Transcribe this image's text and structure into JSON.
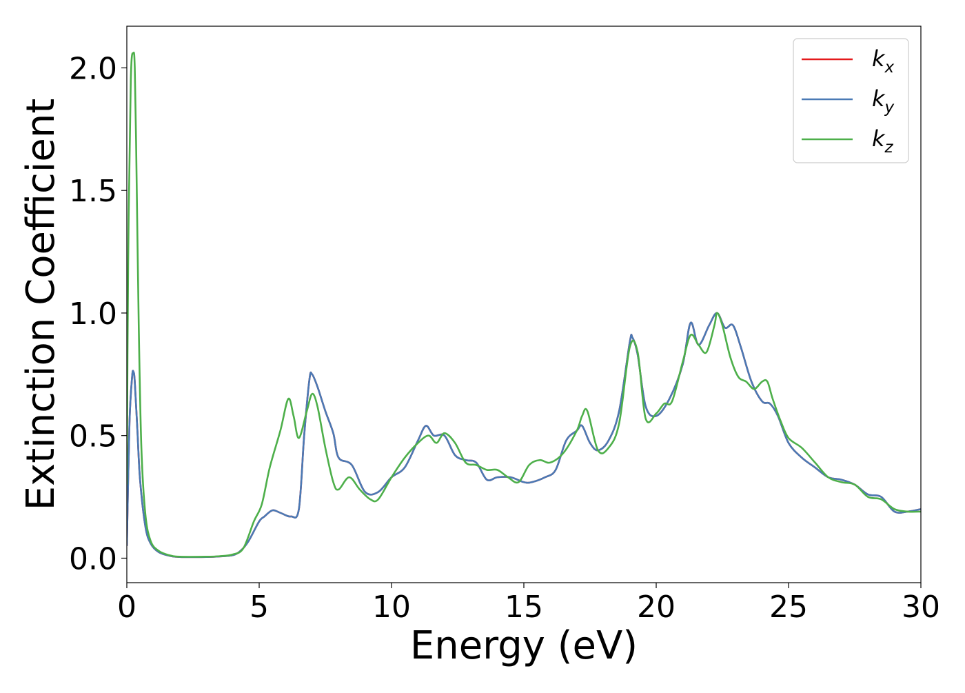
{
  "chart_data": {
    "type": "line",
    "title": "",
    "xlabel": "Energy (eV)",
    "ylabel": "Extinction Coefficient",
    "xlim": [
      0,
      30
    ],
    "ylim": [
      -0.1,
      2.17
    ],
    "xticks": [
      0,
      5,
      10,
      15,
      20,
      25,
      30
    ],
    "xtick_labels": [
      "0",
      "5",
      "10",
      "15",
      "20",
      "25",
      "30"
    ],
    "yticks": [
      0.0,
      0.5,
      1.0,
      1.5,
      2.0
    ],
    "ytick_labels": [
      "0.0",
      "0.5",
      "1.0",
      "1.5",
      "2.0"
    ],
    "grid": false,
    "legend_position": "top-right",
    "series": [
      {
        "name": "kx",
        "label_base": "k",
        "label_sub": "x",
        "color": "#e41a1c",
        "x": [
          0.0,
          0.1,
          0.2,
          0.25,
          0.3,
          0.4,
          0.5,
          0.7,
          0.9,
          1.2,
          1.6,
          2.0,
          3.0,
          3.5,
          4.0,
          4.3,
          4.6,
          5.0,
          5.2,
          5.5,
          5.8,
          6.2,
          6.5,
          6.7,
          6.9,
          7.0,
          7.2,
          7.5,
          7.8,
          8.0,
          8.5,
          9.0,
          9.5,
          10.0,
          10.5,
          11.0,
          11.3,
          11.6,
          12.0,
          12.4,
          12.8,
          13.2,
          13.6,
          14.0,
          14.5,
          15.0,
          15.3,
          15.8,
          16.2,
          16.6,
          17.0,
          17.2,
          17.5,
          17.8,
          18.2,
          18.6,
          19.0,
          19.1,
          19.3,
          19.6,
          20.0,
          20.5,
          21.0,
          21.3,
          21.6,
          22.0,
          22.3,
          22.6,
          22.9,
          23.2,
          23.6,
          24.0,
          24.3,
          24.6,
          25.0,
          25.5,
          26.0,
          26.5,
          27.0,
          27.5,
          28.0,
          28.5,
          29.0,
          29.5,
          30.0
        ],
        "y": [
          0.05,
          0.55,
          0.74,
          0.76,
          0.72,
          0.52,
          0.32,
          0.13,
          0.06,
          0.025,
          0.01,
          0.005,
          0.005,
          0.007,
          0.012,
          0.03,
          0.07,
          0.15,
          0.17,
          0.195,
          0.185,
          0.17,
          0.2,
          0.5,
          0.73,
          0.75,
          0.7,
          0.6,
          0.51,
          0.41,
          0.38,
          0.27,
          0.27,
          0.33,
          0.37,
          0.48,
          0.54,
          0.5,
          0.5,
          0.42,
          0.4,
          0.39,
          0.32,
          0.33,
          0.33,
          0.31,
          0.31,
          0.33,
          0.36,
          0.48,
          0.52,
          0.54,
          0.47,
          0.44,
          0.48,
          0.6,
          0.88,
          0.9,
          0.83,
          0.62,
          0.58,
          0.65,
          0.79,
          0.96,
          0.87,
          0.95,
          1.0,
          0.94,
          0.95,
          0.86,
          0.72,
          0.64,
          0.63,
          0.58,
          0.47,
          0.41,
          0.37,
          0.33,
          0.32,
          0.3,
          0.26,
          0.25,
          0.19,
          0.19,
          0.2
        ]
      },
      {
        "name": "ky",
        "label_base": "k",
        "label_sub": "y",
        "color": "#4a7ab5",
        "x": [
          0.0,
          0.1,
          0.2,
          0.25,
          0.3,
          0.4,
          0.5,
          0.7,
          0.9,
          1.2,
          1.6,
          2.0,
          3.0,
          3.5,
          4.0,
          4.3,
          4.6,
          5.0,
          5.2,
          5.5,
          5.8,
          6.2,
          6.5,
          6.7,
          6.9,
          7.0,
          7.2,
          7.5,
          7.8,
          8.0,
          8.5,
          9.0,
          9.5,
          10.0,
          10.5,
          11.0,
          11.3,
          11.6,
          12.0,
          12.4,
          12.8,
          13.2,
          13.6,
          14.0,
          14.5,
          15.0,
          15.3,
          15.8,
          16.2,
          16.6,
          17.0,
          17.2,
          17.5,
          17.8,
          18.2,
          18.6,
          19.0,
          19.1,
          19.3,
          19.6,
          20.0,
          20.5,
          21.0,
          21.3,
          21.6,
          22.0,
          22.3,
          22.6,
          22.9,
          23.2,
          23.6,
          24.0,
          24.3,
          24.6,
          25.0,
          25.5,
          26.0,
          26.5,
          27.0,
          27.5,
          28.0,
          28.5,
          29.0,
          29.5,
          30.0
        ],
        "y": [
          0.05,
          0.55,
          0.74,
          0.76,
          0.72,
          0.52,
          0.32,
          0.13,
          0.06,
          0.025,
          0.01,
          0.005,
          0.005,
          0.007,
          0.012,
          0.03,
          0.07,
          0.15,
          0.17,
          0.195,
          0.185,
          0.17,
          0.2,
          0.5,
          0.73,
          0.75,
          0.7,
          0.6,
          0.51,
          0.41,
          0.38,
          0.27,
          0.27,
          0.33,
          0.37,
          0.48,
          0.54,
          0.5,
          0.5,
          0.42,
          0.4,
          0.39,
          0.32,
          0.33,
          0.33,
          0.31,
          0.31,
          0.33,
          0.36,
          0.48,
          0.52,
          0.54,
          0.47,
          0.44,
          0.48,
          0.6,
          0.88,
          0.9,
          0.83,
          0.62,
          0.58,
          0.65,
          0.79,
          0.96,
          0.87,
          0.95,
          1.0,
          0.94,
          0.95,
          0.86,
          0.72,
          0.64,
          0.63,
          0.58,
          0.47,
          0.41,
          0.37,
          0.33,
          0.32,
          0.3,
          0.26,
          0.25,
          0.19,
          0.19,
          0.2
        ]
      },
      {
        "name": "kz",
        "label_base": "k",
        "label_sub": "z",
        "color": "#4daf4a",
        "x": [
          0.0,
          0.05,
          0.15,
          0.25,
          0.3,
          0.35,
          0.45,
          0.55,
          0.7,
          0.9,
          1.2,
          1.6,
          2.0,
          3.0,
          3.5,
          4.0,
          4.4,
          4.8,
          5.1,
          5.4,
          5.8,
          6.1,
          6.3,
          6.5,
          6.8,
          7.0,
          7.2,
          7.5,
          7.8,
          8.0,
          8.4,
          8.8,
          9.2,
          9.5,
          10.0,
          10.5,
          11.0,
          11.4,
          11.7,
          12.0,
          12.4,
          12.8,
          13.2,
          13.6,
          14.0,
          14.4,
          14.8,
          15.2,
          15.6,
          16.0,
          16.5,
          17.0,
          17.2,
          17.4,
          17.8,
          18.2,
          18.6,
          19.0,
          19.3,
          19.6,
          20.0,
          20.3,
          20.6,
          21.0,
          21.3,
          21.6,
          21.9,
          22.2,
          22.3,
          22.5,
          22.8,
          23.1,
          23.4,
          23.7,
          24.0,
          24.2,
          24.4,
          24.7,
          25.0,
          25.5,
          26.0,
          26.5,
          27.0,
          27.5,
          28.0,
          28.5,
          29.0,
          29.5,
          30.0
        ],
        "y": [
          0.3,
          1.2,
          1.95,
          2.06,
          2.0,
          1.7,
          0.95,
          0.45,
          0.18,
          0.07,
          0.03,
          0.012,
          0.006,
          0.006,
          0.008,
          0.015,
          0.04,
          0.15,
          0.22,
          0.37,
          0.52,
          0.65,
          0.58,
          0.49,
          0.6,
          0.67,
          0.62,
          0.45,
          0.31,
          0.28,
          0.33,
          0.28,
          0.24,
          0.24,
          0.33,
          0.41,
          0.47,
          0.5,
          0.47,
          0.51,
          0.47,
          0.39,
          0.38,
          0.36,
          0.36,
          0.33,
          0.31,
          0.38,
          0.4,
          0.39,
          0.43,
          0.52,
          0.58,
          0.6,
          0.44,
          0.45,
          0.55,
          0.86,
          0.84,
          0.57,
          0.59,
          0.63,
          0.64,
          0.8,
          0.91,
          0.87,
          0.84,
          0.95,
          1.0,
          0.95,
          0.82,
          0.74,
          0.72,
          0.69,
          0.72,
          0.72,
          0.65,
          0.56,
          0.49,
          0.45,
          0.39,
          0.33,
          0.31,
          0.3,
          0.25,
          0.24,
          0.2,
          0.19,
          0.19
        ]
      }
    ]
  }
}
